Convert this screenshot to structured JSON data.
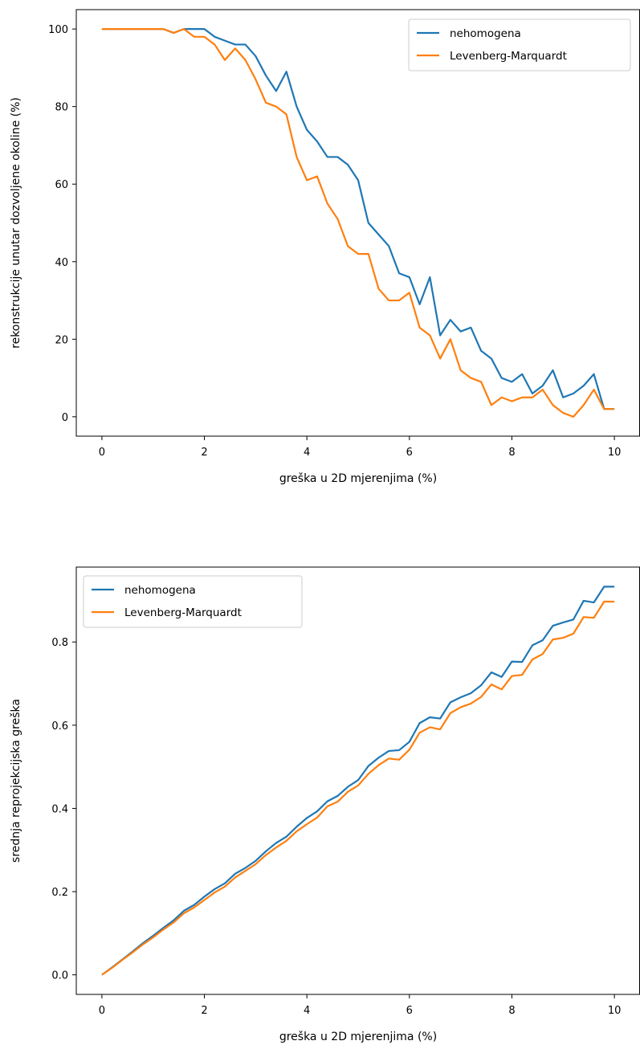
{
  "chart_data": [
    {
      "type": "line",
      "xlabel": "greška u 2D mjerenjima (%)",
      "ylabel": "rekonstrukcije unutar dozvoljene okoline (%)",
      "xlim": [
        -0.5,
        10.5
      ],
      "ylim": [
        -5,
        105
      ],
      "xticks": [
        0,
        2,
        4,
        6,
        8,
        10
      ],
      "yticks": [
        0,
        20,
        40,
        60,
        80,
        100
      ],
      "grid": false,
      "legend_position": "top-right",
      "x": [
        0,
        0.2,
        0.4,
        0.6,
        0.8,
        1.0,
        1.2,
        1.4,
        1.6,
        1.8,
        2.0,
        2.2,
        2.4,
        2.6,
        2.8,
        3.0,
        3.2,
        3.4,
        3.6,
        3.8,
        4.0,
        4.2,
        4.4,
        4.6,
        4.8,
        5.0,
        5.2,
        5.4,
        5.6,
        5.8,
        6.0,
        6.2,
        6.4,
        6.6,
        6.8,
        7.0,
        7.2,
        7.4,
        7.6,
        7.8,
        8.0,
        8.2,
        8.4,
        8.6,
        8.8,
        9.0,
        9.2,
        9.4,
        9.6,
        9.8,
        10.0
      ],
      "series": [
        {
          "name": "nehomogena",
          "color": "#1f77b4",
          "values": [
            100,
            100,
            100,
            100,
            100,
            100,
            100,
            99,
            100,
            100,
            100,
            98,
            97,
            96,
            96,
            93,
            88,
            84,
            89,
            80,
            74,
            71,
            67,
            67,
            65,
            61,
            50,
            47,
            44,
            37,
            36,
            29,
            36,
            21,
            25,
            22,
            23,
            17,
            15,
            10,
            9,
            11,
            6,
            8,
            12,
            5,
            6,
            8,
            11,
            2,
            2
          ]
        },
        {
          "name": "Levenberg-Marquardt",
          "color": "#ff7f0e",
          "values": [
            100,
            100,
            100,
            100,
            100,
            100,
            100,
            99,
            100,
            98,
            98,
            96,
            92,
            95,
            92,
            87,
            81,
            80,
            78,
            67,
            61,
            62,
            55,
            51,
            44,
            42,
            42,
            33,
            30,
            30,
            32,
            23,
            21,
            15,
            20,
            12,
            10,
            9,
            3,
            5,
            4,
            5,
            5,
            7,
            3,
            1,
            0,
            3,
            7,
            2,
            2
          ]
        }
      ]
    },
    {
      "type": "line",
      "xlabel": "greška u 2D mjerenjima (%)",
      "ylabel": "srednja reprojekcijska greška",
      "xlim": [
        -0.5,
        10.5
      ],
      "ylim": [
        -0.047,
        0.98
      ],
      "xticks": [
        0,
        2,
        4,
        6,
        8,
        10
      ],
      "yticks": [
        0.0,
        0.2,
        0.4,
        0.6,
        0.8
      ],
      "ytick_labels": [
        "0.0",
        "0.2",
        "0.4",
        "0.6",
        "0.8"
      ],
      "grid": false,
      "legend_position": "top-left",
      "x": [
        0,
        0.2,
        0.4,
        0.6,
        0.8,
        1.0,
        1.2,
        1.4,
        1.6,
        1.8,
        2.0,
        2.2,
        2.4,
        2.6,
        2.8,
        3.0,
        3.2,
        3.4,
        3.6,
        3.8,
        4.0,
        4.2,
        4.4,
        4.6,
        4.8,
        5.0,
        5.2,
        5.4,
        5.6,
        5.8,
        6.0,
        6.2,
        6.4,
        6.6,
        6.8,
        7.0,
        7.2,
        7.4,
        7.6,
        7.8,
        8.0,
        8.2,
        8.4,
        8.6,
        8.8,
        9.0,
        9.2,
        9.4,
        9.6,
        9.8,
        10.0
      ],
      "series": [
        {
          "name": "nehomogena",
          "color": "#1f77b4",
          "values": [
            0.0,
            0.018,
            0.037,
            0.056,
            0.076,
            0.094,
            0.113,
            0.131,
            0.154,
            0.168,
            0.188,
            0.206,
            0.22,
            0.243,
            0.257,
            0.274,
            0.297,
            0.317,
            0.332,
            0.356,
            0.377,
            0.393,
            0.417,
            0.43,
            0.452,
            0.468,
            0.502,
            0.522,
            0.538,
            0.54,
            0.56,
            0.605,
            0.619,
            0.616,
            0.655,
            0.667,
            0.677,
            0.696,
            0.727,
            0.716,
            0.753,
            0.752,
            0.792,
            0.804,
            0.839,
            0.847,
            0.854,
            0.899,
            0.895,
            0.933,
            0.933
          ]
        },
        {
          "name": "Levenberg-Marquardt",
          "color": "#ff7f0e",
          "values": [
            0.0,
            0.017,
            0.036,
            0.054,
            0.073,
            0.09,
            0.109,
            0.126,
            0.148,
            0.162,
            0.18,
            0.198,
            0.212,
            0.234,
            0.25,
            0.266,
            0.288,
            0.306,
            0.322,
            0.345,
            0.362,
            0.378,
            0.405,
            0.416,
            0.44,
            0.455,
            0.483,
            0.504,
            0.52,
            0.517,
            0.541,
            0.582,
            0.595,
            0.59,
            0.629,
            0.643,
            0.652,
            0.668,
            0.698,
            0.686,
            0.718,
            0.721,
            0.758,
            0.771,
            0.806,
            0.81,
            0.82,
            0.86,
            0.858,
            0.897,
            0.897
          ]
        }
      ]
    }
  ]
}
